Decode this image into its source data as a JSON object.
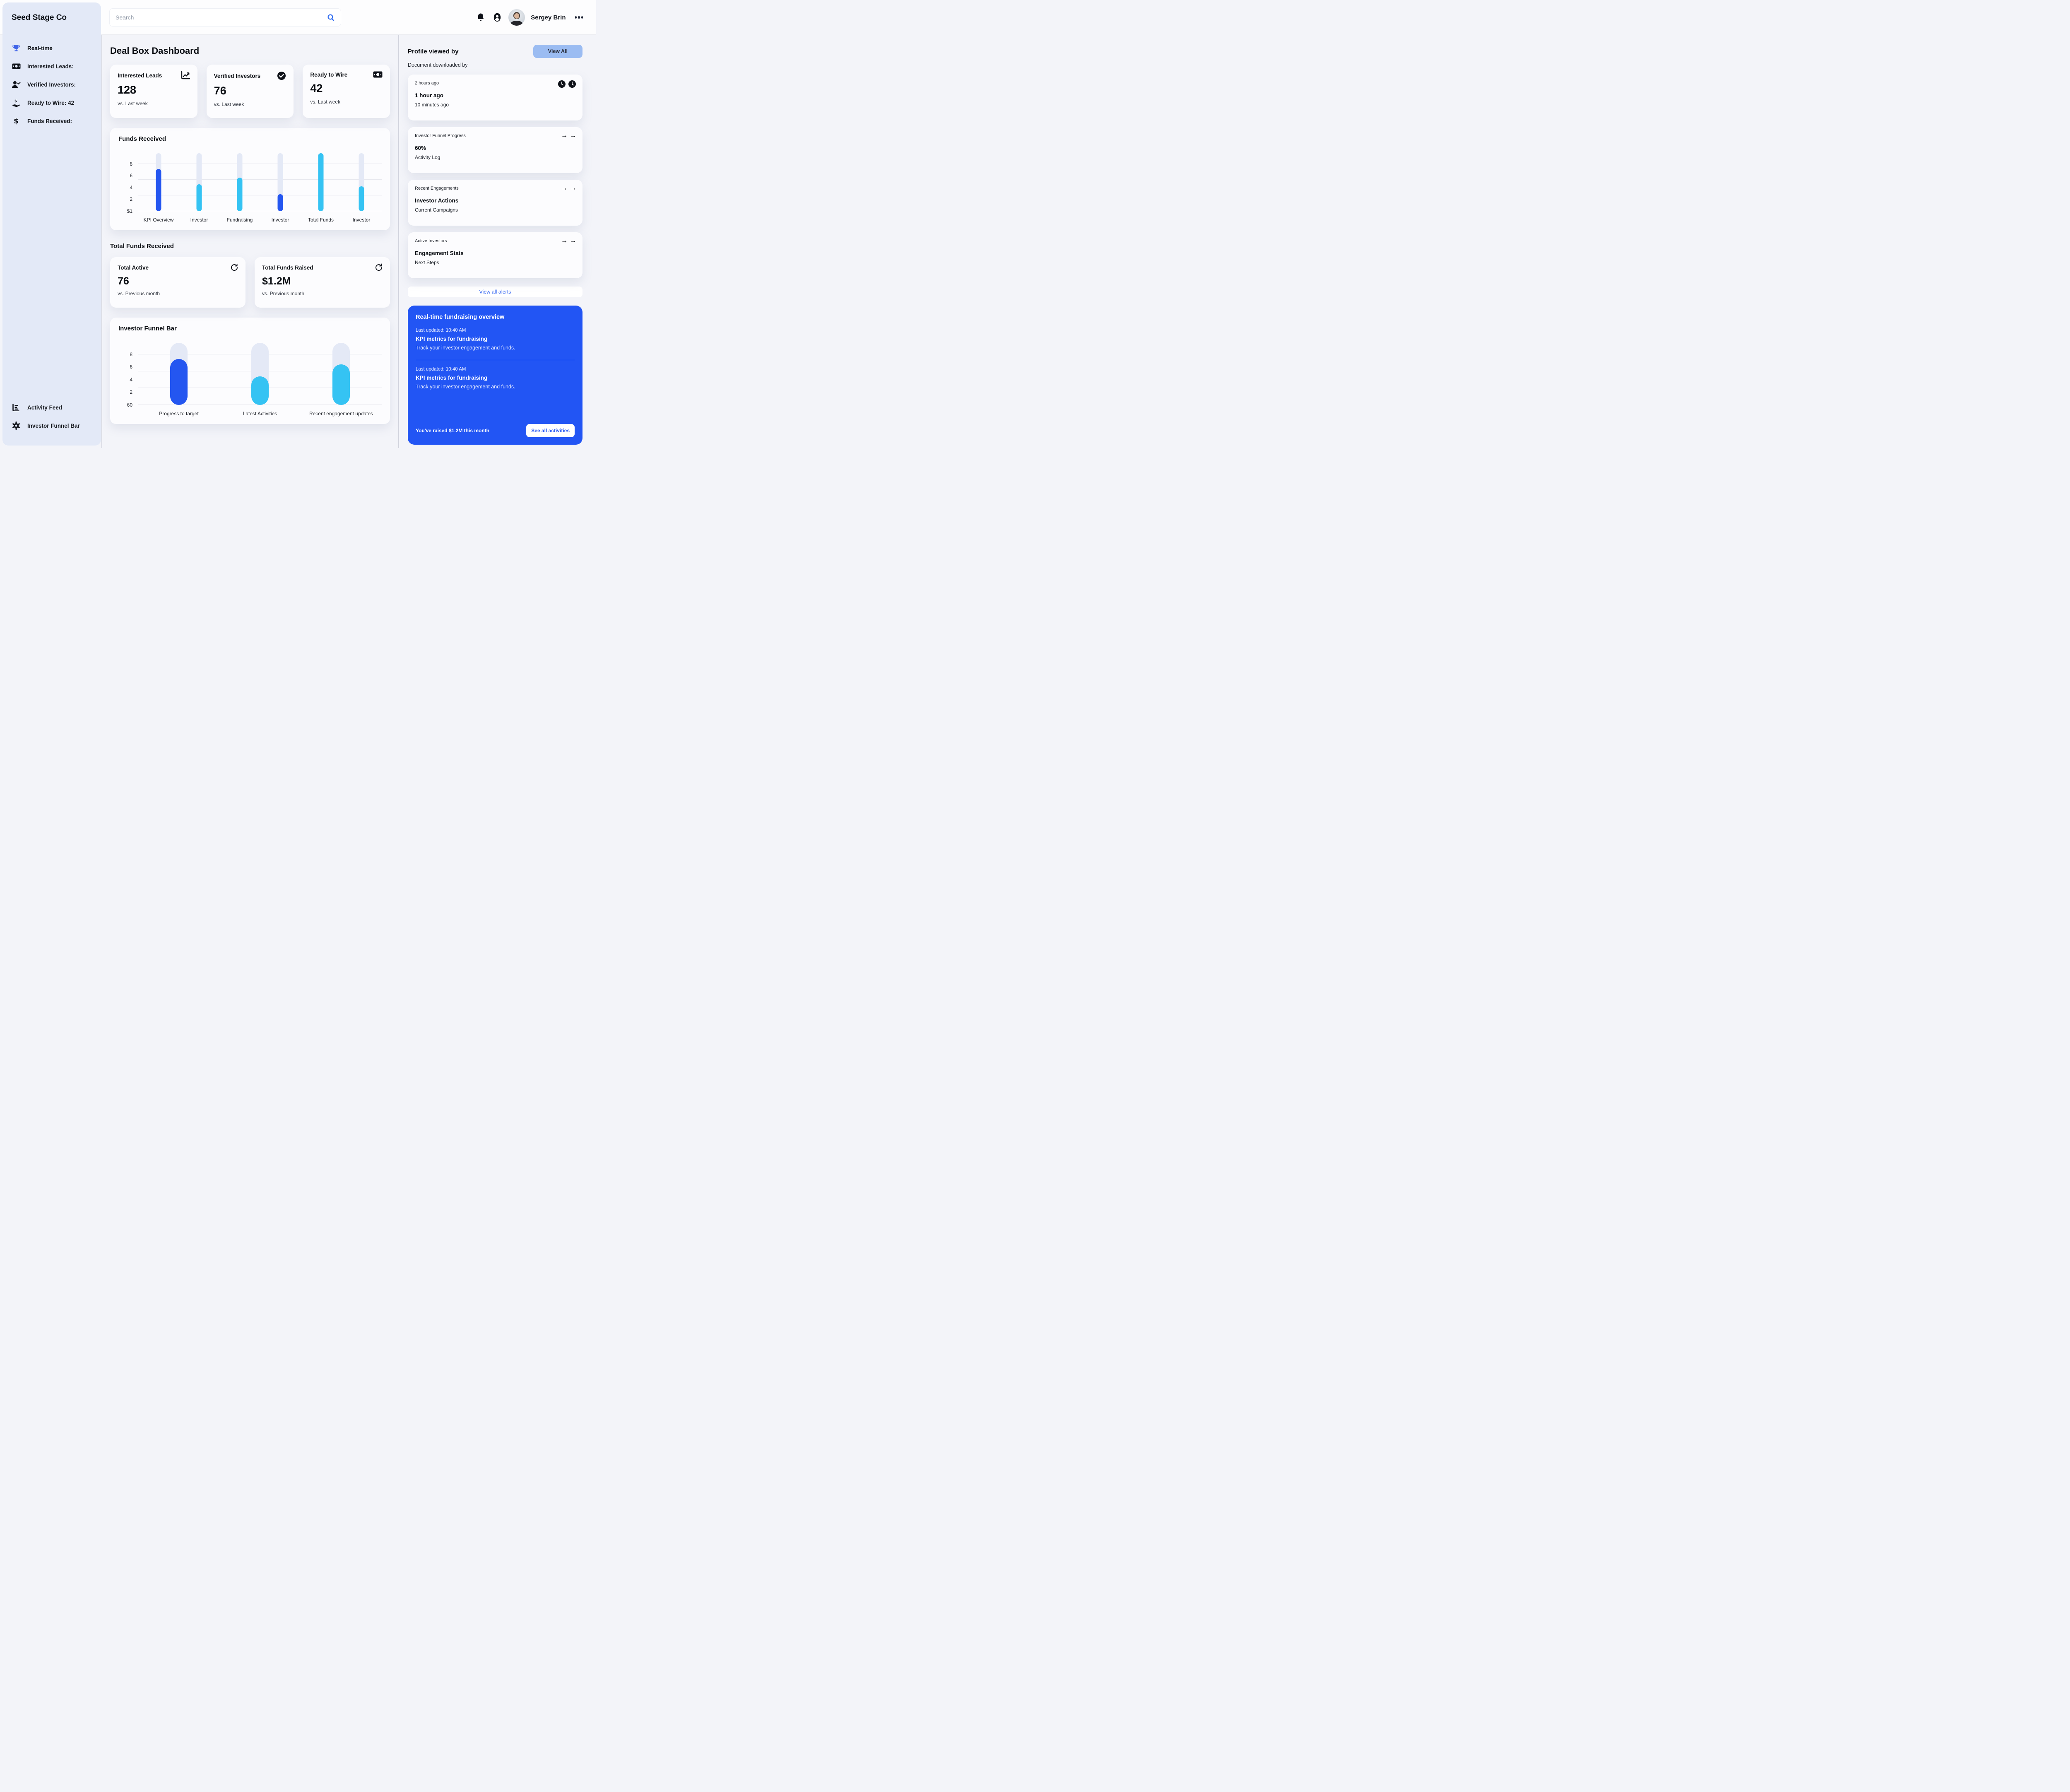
{
  "app": {
    "title": "Seed Stage Co"
  },
  "sidebar": {
    "items": [
      {
        "label": "Real-time",
        "icon": "trophy-icon"
      },
      {
        "label": "Interested Leads:",
        "icon": "banknote-icon"
      },
      {
        "label": "Verified Investors:",
        "icon": "person-check-icon"
      },
      {
        "label": "Ready to Wire: 42",
        "icon": "hand-dollar-icon"
      },
      {
        "label": "Funds Received:",
        "icon": "dollar-icon"
      }
    ],
    "footer_items": [
      {
        "label": "Activity Feed",
        "icon": "activity-feed-icon"
      },
      {
        "label": "Investor Funnel Bar",
        "icon": "gear-icon"
      }
    ]
  },
  "header": {
    "search_placeholder": "Search",
    "user_name": "Sergey Brin",
    "icons": [
      "search-icon",
      "bell-icon",
      "account-icon",
      "ellipsis-icon"
    ]
  },
  "main": {
    "title": "Deal Box Dashboard",
    "kpi_cards": [
      {
        "label": "Interested Leads",
        "value": "128",
        "note": "vs. Last week",
        "icon": "line-chart-icon"
      },
      {
        "label": "Verified Investors",
        "value": "76",
        "note": "vs. Last week",
        "icon": "check-circle-icon"
      },
      {
        "label": "Ready to Wire",
        "value": "42",
        "note": "vs. Last week",
        "icon": "banknote-icon"
      }
    ],
    "section_title": "Total Funds Received",
    "stat_cards": [
      {
        "label": "Total Active",
        "value": "76",
        "note": "vs. Previous month",
        "icon": "refresh-icon"
      },
      {
        "label": "Total Funds Raised",
        "value": "$1.2M",
        "note": "vs. Previous month",
        "icon": "refresh-icon"
      }
    ]
  },
  "right_panel": {
    "heading": "Profile viewed by",
    "view_all_button": "View All",
    "subheading": "Document downloaded by",
    "cards": [
      {
        "meta": "2 hours ago",
        "title": "1 hour ago",
        "subtitle": "10 minutes ago",
        "icon": "clock-icon"
      },
      {
        "meta": "Investor Funnel Progress",
        "title": "60%",
        "subtitle": "Activity Log",
        "icon": "arrow-right-icon"
      },
      {
        "meta": "Recent Engagements",
        "title": "Investor Actions",
        "subtitle": "Current Campaigns",
        "icon": "arrow-right-icon"
      },
      {
        "meta": "Active Investors",
        "title": "Engagement Stats",
        "subtitle": "Next Steps",
        "icon": "arrow-right-icon"
      }
    ],
    "arrow_glyph": "→",
    "view_all_alerts": "View all alerts",
    "promo": {
      "title": "Real-time fundraising overview",
      "entries": [
        {
          "updated": "Last updated: 10:40 AM",
          "title": "KPI metrics for fundraising",
          "desc": "Track your investor engagement and funds."
        },
        {
          "updated": "Last updated: 10:40 AM",
          "title": "KPI metrics for fundraising",
          "desc": "Track your investor engagement and funds."
        }
      ],
      "footer": "You've raised $1.2M this month",
      "button": "See all activities"
    }
  },
  "colors": {
    "accent_blue": "#2456f0",
    "light_blue": "#35c3f3",
    "bar_track": "#e4e9f6",
    "sidebar_bg": "#e3e9f7",
    "view_all_bg": "#9bbcf2",
    "promo_bg": "#2255f4",
    "link_blue": "#2f62f1"
  },
  "chart_data": [
    {
      "type": "bar",
      "title": "Funds Received",
      "categories": [
        "KPI Overview",
        "Investor",
        "Fundraising",
        "Investor",
        "Total Funds",
        "Investor"
      ],
      "values": [
        6.8,
        4.3,
        5.4,
        2.7,
        9.3,
        4.0
      ],
      "bar_colors": [
        "#2456f0",
        "#35c3f3",
        "#35c3f3",
        "#2456f0",
        "#35c3f3",
        "#35c3f3"
      ],
      "track_max": 9.3,
      "ylim": [
        0,
        9.3
      ],
      "y_tick_labels": [
        "$1",
        "2",
        "4",
        "6",
        "8"
      ],
      "grid": true,
      "legend": "none",
      "xlabel": "",
      "ylabel": ""
    },
    {
      "type": "bar",
      "title": "Investor Funnel Bar",
      "categories": [
        "Progress to target",
        "Latest Activities",
        "Recent engagement updates"
      ],
      "values": [
        6.9,
        4.3,
        6.1
      ],
      "bar_colors": [
        "#2456f0",
        "#35c3f3",
        "#35c3f3"
      ],
      "track_max": 9.3,
      "ylim": [
        0,
        9.3
      ],
      "y_tick_labels": [
        "60",
        "2",
        "4",
        "6",
        "8"
      ],
      "grid": true,
      "legend": "none",
      "xlabel": "",
      "ylabel": ""
    }
  ]
}
